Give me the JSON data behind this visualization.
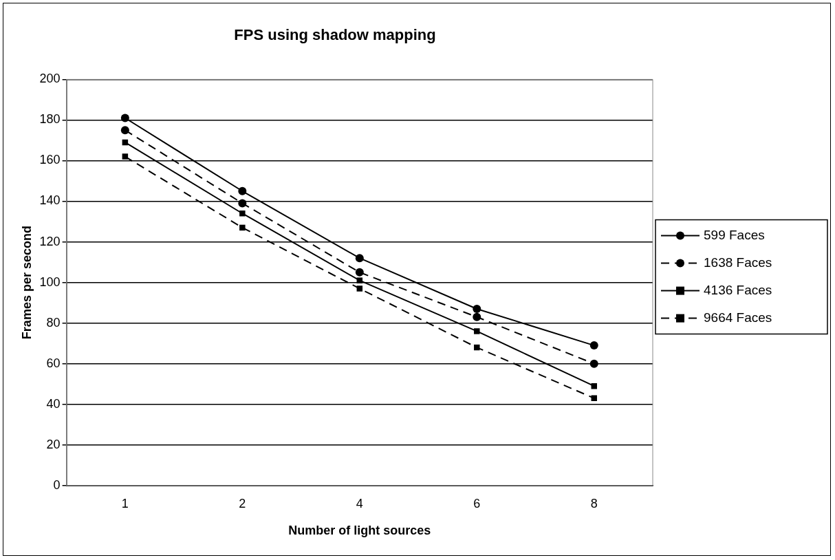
{
  "chart_data": {
    "type": "line",
    "title": "FPS using shadow mapping",
    "xlabel": "Number of light sources",
    "ylabel": "Frames per second",
    "categories": [
      "1",
      "2",
      "4",
      "6",
      "8"
    ],
    "series": [
      {
        "name": "599 Faces",
        "color": "#000000",
        "marker": "circle",
        "line_style": "solid",
        "values": [
          181,
          145,
          112,
          87,
          69
        ]
      },
      {
        "name": "1638 Faces",
        "color": "#000000",
        "marker": "circle",
        "line_style": "dashed",
        "values": [
          175,
          139,
          105,
          83,
          60
        ]
      },
      {
        "name": "4136 Faces",
        "color": "#000000",
        "marker": "square",
        "line_style": "solid",
        "values": [
          169,
          134,
          101,
          76,
          49
        ]
      },
      {
        "name": "9664 Faces",
        "color": "#000000",
        "marker": "square",
        "line_style": "dashed",
        "values": [
          162,
          127,
          97,
          68,
          43
        ]
      }
    ],
    "ylim": [
      0,
      200
    ],
    "yticks": [
      0,
      20,
      40,
      60,
      80,
      100,
      120,
      140,
      160,
      180,
      200
    ],
    "grid": "y",
    "legend": "right"
  }
}
